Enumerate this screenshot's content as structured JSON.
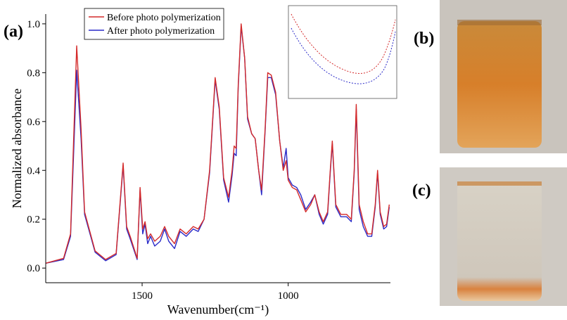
{
  "chart_data": {
    "type": "line",
    "panel_label": "(a)",
    "xlabel": "Wavenumber(cm⁻¹)",
    "ylabel": "Normalized absorbance",
    "x": [
      1829,
      1769,
      1745,
      1724,
      1709,
      1697,
      1661,
      1625,
      1589,
      1565,
      1553,
      1541,
      1517,
      1507,
      1498,
      1490,
      1481,
      1471,
      1457,
      1438,
      1423,
      1409,
      1389,
      1370,
      1349,
      1325,
      1308,
      1288,
      1269,
      1250,
      1236,
      1221,
      1204,
      1192,
      1185,
      1178,
      1171,
      1161,
      1149,
      1139,
      1125,
      1113,
      1101,
      1091,
      1079,
      1070,
      1058,
      1043,
      1029,
      1017,
      1007,
      1000,
      986,
      971,
      957,
      940,
      923,
      909,
      894,
      880,
      865,
      856,
      849,
      837,
      820,
      800,
      784,
      774,
      767,
      757,
      743,
      728,
      714,
      702,
      694,
      685,
      673,
      663,
      654
    ],
    "series": [
      {
        "name": "Before photo polymerization",
        "color": "#d42a2a",
        "values": [
          0.02,
          0.04,
          0.14,
          0.91,
          0.57,
          0.23,
          0.07,
          0.035,
          0.06,
          0.43,
          0.17,
          0.13,
          0.04,
          0.33,
          0.16,
          0.19,
          0.12,
          0.14,
          0.11,
          0.13,
          0.17,
          0.13,
          0.1,
          0.16,
          0.14,
          0.17,
          0.16,
          0.2,
          0.4,
          0.78,
          0.66,
          0.37,
          0.29,
          0.4,
          0.5,
          0.49,
          0.75,
          1.0,
          0.86,
          0.62,
          0.55,
          0.53,
          0.4,
          0.32,
          0.57,
          0.8,
          0.79,
          0.72,
          0.52,
          0.4,
          0.44,
          0.36,
          0.33,
          0.32,
          0.28,
          0.23,
          0.26,
          0.3,
          0.23,
          0.19,
          0.23,
          0.4,
          0.52,
          0.26,
          0.22,
          0.22,
          0.2,
          0.4,
          0.67,
          0.26,
          0.19,
          0.14,
          0.14,
          0.26,
          0.4,
          0.23,
          0.17,
          0.18,
          0.26
        ]
      },
      {
        "name": "After photo polymerization",
        "color": "#2a2ac8",
        "values": [
          0.02,
          0.035,
          0.13,
          0.81,
          0.53,
          0.22,
          0.065,
          0.03,
          0.055,
          0.42,
          0.16,
          0.12,
          0.035,
          0.32,
          0.14,
          0.18,
          0.1,
          0.13,
          0.09,
          0.11,
          0.16,
          0.11,
          0.08,
          0.15,
          0.13,
          0.16,
          0.15,
          0.2,
          0.39,
          0.77,
          0.65,
          0.36,
          0.27,
          0.38,
          0.47,
          0.46,
          0.74,
          0.99,
          0.86,
          0.61,
          0.55,
          0.53,
          0.4,
          0.3,
          0.56,
          0.78,
          0.78,
          0.71,
          0.52,
          0.41,
          0.49,
          0.37,
          0.34,
          0.33,
          0.3,
          0.24,
          0.27,
          0.3,
          0.22,
          0.18,
          0.22,
          0.39,
          0.51,
          0.25,
          0.21,
          0.21,
          0.19,
          0.39,
          0.65,
          0.24,
          0.17,
          0.13,
          0.13,
          0.25,
          0.39,
          0.22,
          0.16,
          0.17,
          0.25
        ]
      }
    ],
    "xlim": [
      1830,
      650
    ],
    "xticks": [
      1500,
      1000
    ],
    "ylim": [
      -0.06,
      1.04
    ],
    "yticks": [
      {
        "value": 0,
        "label": "0.0"
      },
      0.2,
      0.4,
      0.6,
      0.8,
      {
        "value": 1,
        "label": "1.0"
      }
    ],
    "legend": "upper left"
  },
  "photos": [
    {
      "label": "(b)"
    },
    {
      "label": "(c)"
    }
  ]
}
